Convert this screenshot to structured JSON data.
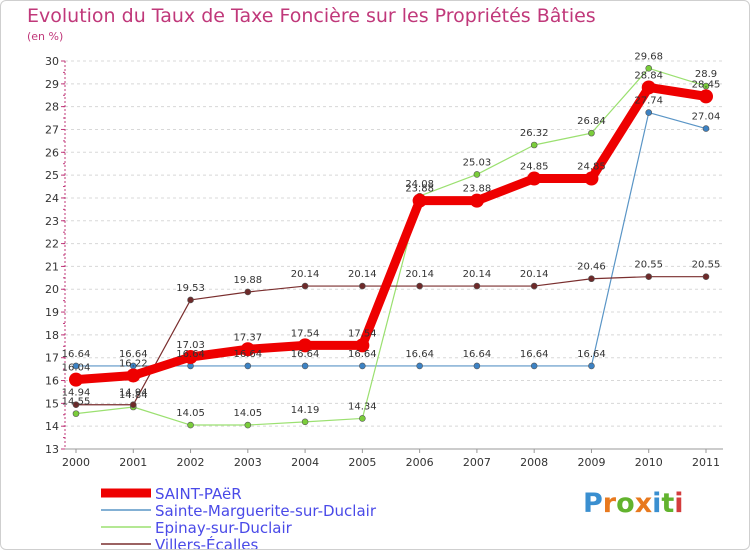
{
  "chart_data": {
    "type": "line",
    "title": "Evolution du Taux de Taxe Foncière sur les Propriétés Bâties",
    "ylabel": "(en %)",
    "xlabel": "",
    "ylim": [
      13,
      30
    ],
    "yticks": [
      "13",
      "14",
      "15",
      "16",
      "17",
      "18",
      "19",
      "20",
      "21",
      "22",
      "23",
      "24",
      "25",
      "26",
      "27",
      "28",
      "29",
      "30"
    ],
    "categories": [
      "2000",
      "2001",
      "2002",
      "2003",
      "2004",
      "2005",
      "2006",
      "2007",
      "2008",
      "2009",
      "2010",
      "2011"
    ],
    "series": [
      {
        "name": "Sainte-Marguerite-sur-Duclair",
        "color": "#5a95c6",
        "marker": "#3c82c4",
        "width": 1.2,
        "values": [
          16.64,
          16.64,
          16.64,
          16.64,
          16.64,
          16.64,
          16.64,
          16.64,
          16.64,
          16.64,
          27.74,
          27.04
        ],
        "labels": [
          "16.64",
          "16.64",
          "16.64",
          "16.64",
          "16.64",
          "16.64",
          "16.64",
          "16.64",
          "16.64",
          "16.64",
          "27.74",
          "27.04"
        ]
      },
      {
        "name": "Epinay-sur-Duclair",
        "color": "#9be070",
        "marker": "#7acd3a",
        "width": 1.2,
        "values": [
          14.55,
          14.84,
          14.05,
          14.05,
          14.19,
          14.34,
          24.08,
          25.03,
          26.32,
          26.84,
          29.68,
          28.9
        ],
        "labels": [
          "14.55",
          "14.84",
          "14.05",
          "14.05",
          "14.19",
          "14.34",
          "24.08",
          "25.03",
          "26.32",
          "26.84",
          "29.68",
          "28.9"
        ]
      },
      {
        "name": "Villers-Écalles",
        "color": "#7a2e2e",
        "marker": "#6e2a2a",
        "width": 1.2,
        "values": [
          14.94,
          14.94,
          19.53,
          19.88,
          20.14,
          20.14,
          20.14,
          20.14,
          20.14,
          20.46,
          20.55,
          20.55
        ],
        "labels": [
          "14.94",
          "14.94",
          "19.53",
          "19.88",
          "20.14",
          "20.14",
          "20.14",
          "20.14",
          "20.14",
          "20.46",
          "20.55",
          "20.55"
        ]
      },
      {
        "name": "SAINT-PAëR",
        "color": "#ee0000",
        "marker": "#ee0000",
        "width": 9,
        "values": [
          16.04,
          16.22,
          17.03,
          17.37,
          17.54,
          17.54,
          23.88,
          23.88,
          24.85,
          24.85,
          28.84,
          28.45
        ],
        "labels": [
          "16.04",
          "16.22",
          "17.03",
          "17.37",
          "17.54",
          "17.54",
          "23.88",
          "23.88",
          "24.85",
          "24.85",
          "28.84",
          "28.45"
        ]
      }
    ],
    "legend": [
      "SAINT-PAëR",
      "Sainte-Marguerite-sur-Duclair",
      "Epinay-sur-Duclair",
      "Villers-Écalles"
    ],
    "legend_position": "bottom-left"
  },
  "logo_text": [
    "P",
    "r",
    "o",
    "x",
    "i",
    "t",
    "i"
  ]
}
